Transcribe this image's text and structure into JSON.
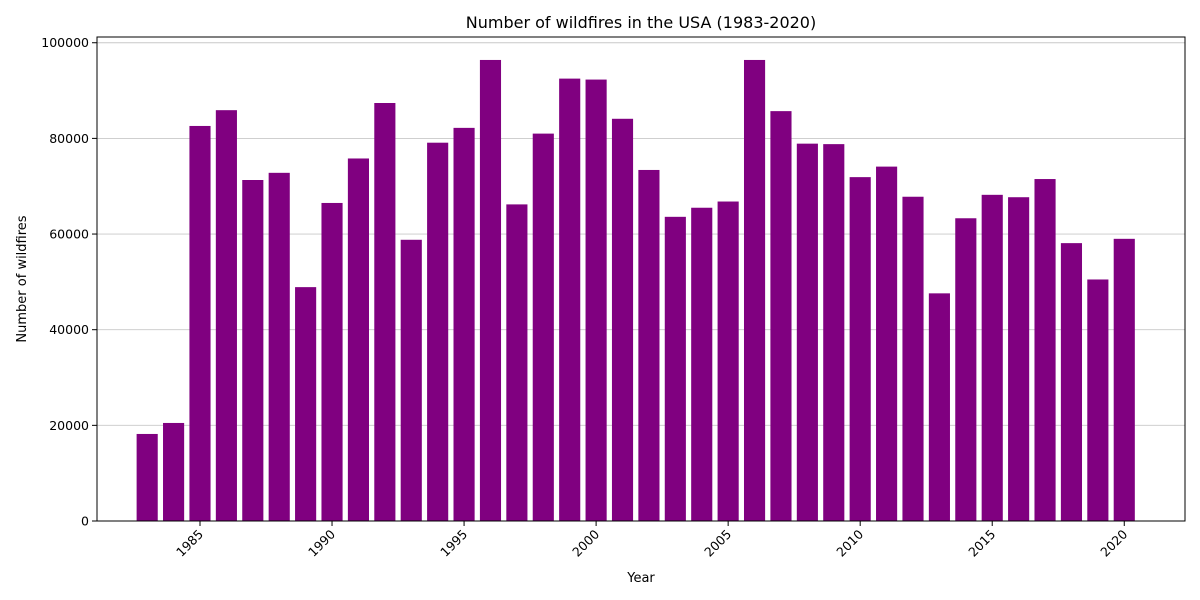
{
  "chart_data": {
    "type": "bar",
    "title": "Number of wildfires in the USA (1983-2020)",
    "xlabel": "Year",
    "ylabel": "Number of wildfires",
    "x": [
      1983,
      1984,
      1985,
      1986,
      1987,
      1988,
      1989,
      1990,
      1991,
      1992,
      1993,
      1994,
      1995,
      1996,
      1997,
      1998,
      1999,
      2000,
      2001,
      2002,
      2003,
      2004,
      2005,
      2006,
      2007,
      2008,
      2009,
      2010,
      2011,
      2012,
      2013,
      2014,
      2015,
      2016,
      2017,
      2018,
      2019,
      2020
    ],
    "values": [
      18200,
      20500,
      82600,
      85900,
      71300,
      72800,
      48900,
      66500,
      75800,
      87400,
      58800,
      79100,
      82200,
      96400,
      66200,
      81000,
      92500,
      92300,
      84100,
      73400,
      63600,
      65500,
      66800,
      96400,
      85700,
      78900,
      78800,
      71900,
      74100,
      67800,
      47600,
      63300,
      68200,
      67700,
      71500,
      58100,
      50500,
      59000
    ],
    "xticks": [
      1985,
      1990,
      1995,
      2000,
      2005,
      2010,
      2015,
      2020
    ],
    "yticks": [
      0,
      20000,
      40000,
      60000,
      80000,
      100000
    ],
    "xlim": [
      1981.1,
      2022.3
    ],
    "ylim": [
      0,
      101200
    ],
    "grid": "y",
    "bar_color": "#800080"
  }
}
